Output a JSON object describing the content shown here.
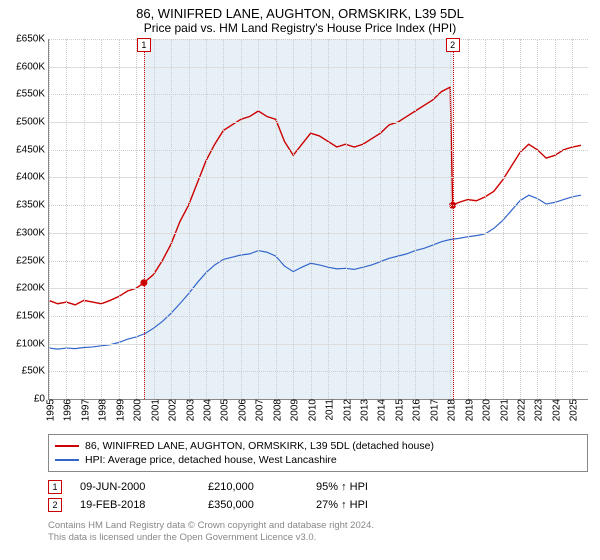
{
  "title": "86, WINIFRED LANE, AUGHTON, ORMSKIRK, L39 5DL",
  "subtitle": "Price paid vs. HM Land Registry's House Price Index (HPI)",
  "chart": {
    "type": "line",
    "background": "#ffffff",
    "grid_color": "#dddddd",
    "grid_dot_color": "#cccccc",
    "x_start_year": 1995,
    "x_end_year": 2025.9,
    "xtick_years": [
      1995,
      1996,
      1997,
      1998,
      1999,
      2000,
      2001,
      2002,
      2003,
      2004,
      2005,
      2006,
      2007,
      2008,
      2009,
      2010,
      2011,
      2012,
      2013,
      2014,
      2015,
      2016,
      2017,
      2018,
      2019,
      2020,
      2021,
      2022,
      2023,
      2024,
      2025
    ],
    "ylim": [
      0,
      650000
    ],
    "ytick_step": 50000,
    "ylabels": [
      "£0",
      "£50K",
      "£100K",
      "£150K",
      "£200K",
      "£250K",
      "£300K",
      "£350K",
      "£400K",
      "£450K",
      "£500K",
      "£550K",
      "£600K",
      "£650K"
    ],
    "shade": {
      "color": "#d6e4f0",
      "from_year": 2000.44,
      "to_year": 2018.14
    },
    "markers": [
      {
        "n": "1",
        "year": 2000.44,
        "price": 210000,
        "color": "#cc0000"
      },
      {
        "n": "2",
        "year": 2018.14,
        "price": 350000,
        "color": "#cc0000"
      }
    ],
    "series": [
      {
        "name": "86, WINIFRED LANE, AUGHTON, ORMSKIRK, L39 5DL (detached house)",
        "color": "#cc0000",
        "line_width": 1.4,
        "values": [
          [
            1995,
            178000
          ],
          [
            1995.5,
            172000
          ],
          [
            1996,
            175000
          ],
          [
            1996.5,
            170000
          ],
          [
            1997,
            178000
          ],
          [
            1997.5,
            175000
          ],
          [
            1998,
            172000
          ],
          [
            1998.5,
            178000
          ],
          [
            1999,
            185000
          ],
          [
            1999.5,
            195000
          ],
          [
            2000,
            200000
          ],
          [
            2000.44,
            210000
          ],
          [
            2001,
            225000
          ],
          [
            2001.5,
            250000
          ],
          [
            2002,
            280000
          ],
          [
            2002.5,
            320000
          ],
          [
            2003,
            350000
          ],
          [
            2003.5,
            390000
          ],
          [
            2004,
            430000
          ],
          [
            2004.5,
            460000
          ],
          [
            2005,
            485000
          ],
          [
            2005.5,
            495000
          ],
          [
            2006,
            505000
          ],
          [
            2006.5,
            510000
          ],
          [
            2007,
            520000
          ],
          [
            2007.5,
            510000
          ],
          [
            2008,
            505000
          ],
          [
            2008.5,
            465000
          ],
          [
            2009,
            440000
          ],
          [
            2009.5,
            460000
          ],
          [
            2010,
            480000
          ],
          [
            2010.5,
            475000
          ],
          [
            2011,
            465000
          ],
          [
            2011.5,
            455000
          ],
          [
            2012,
            460000
          ],
          [
            2012.5,
            455000
          ],
          [
            2013,
            460000
          ],
          [
            2013.5,
            470000
          ],
          [
            2014,
            480000
          ],
          [
            2014.5,
            495000
          ],
          [
            2015,
            500000
          ],
          [
            2015.5,
            510000
          ],
          [
            2016,
            520000
          ],
          [
            2016.5,
            530000
          ],
          [
            2017,
            540000
          ],
          [
            2017.5,
            555000
          ],
          [
            2018,
            563000
          ],
          [
            2018.14,
            350000
          ],
          [
            2018.5,
            355000
          ],
          [
            2019,
            360000
          ],
          [
            2019.5,
            358000
          ],
          [
            2020,
            365000
          ],
          [
            2020.5,
            375000
          ],
          [
            2021,
            395000
          ],
          [
            2021.5,
            420000
          ],
          [
            2022,
            445000
          ],
          [
            2022.5,
            460000
          ],
          [
            2023,
            450000
          ],
          [
            2023.5,
            435000
          ],
          [
            2024,
            440000
          ],
          [
            2024.5,
            450000
          ],
          [
            2025,
            455000
          ],
          [
            2025.5,
            458000
          ]
        ]
      },
      {
        "name": "HPI: Average price, detached house, West Lancashire",
        "color": "#3366cc",
        "line_width": 1.2,
        "values": [
          [
            1995,
            92000
          ],
          [
            1995.5,
            90000
          ],
          [
            1996,
            92000
          ],
          [
            1996.5,
            91000
          ],
          [
            1997,
            93000
          ],
          [
            1997.5,
            94000
          ],
          [
            1998,
            96000
          ],
          [
            1998.5,
            98000
          ],
          [
            1999,
            102000
          ],
          [
            1999.5,
            108000
          ],
          [
            2000,
            112000
          ],
          [
            2000.5,
            118000
          ],
          [
            2001,
            128000
          ],
          [
            2001.5,
            140000
          ],
          [
            2002,
            155000
          ],
          [
            2002.5,
            172000
          ],
          [
            2003,
            190000
          ],
          [
            2003.5,
            210000
          ],
          [
            2004,
            228000
          ],
          [
            2004.5,
            242000
          ],
          [
            2005,
            252000
          ],
          [
            2005.5,
            256000
          ],
          [
            2006,
            260000
          ],
          [
            2006.5,
            262000
          ],
          [
            2007,
            268000
          ],
          [
            2007.5,
            265000
          ],
          [
            2008,
            258000
          ],
          [
            2008.5,
            240000
          ],
          [
            2009,
            230000
          ],
          [
            2009.5,
            238000
          ],
          [
            2010,
            245000
          ],
          [
            2010.5,
            242000
          ],
          [
            2011,
            238000
          ],
          [
            2011.5,
            235000
          ],
          [
            2012,
            236000
          ],
          [
            2012.5,
            234000
          ],
          [
            2013,
            238000
          ],
          [
            2013.5,
            242000
          ],
          [
            2014,
            248000
          ],
          [
            2014.5,
            254000
          ],
          [
            2015,
            258000
          ],
          [
            2015.5,
            262000
          ],
          [
            2016,
            268000
          ],
          [
            2016.5,
            272000
          ],
          [
            2017,
            278000
          ],
          [
            2017.5,
            284000
          ],
          [
            2018,
            288000
          ],
          [
            2018.5,
            290000
          ],
          [
            2019,
            293000
          ],
          [
            2019.5,
            295000
          ],
          [
            2020,
            298000
          ],
          [
            2020.5,
            308000
          ],
          [
            2021,
            322000
          ],
          [
            2021.5,
            340000
          ],
          [
            2022,
            358000
          ],
          [
            2022.5,
            368000
          ],
          [
            2023,
            362000
          ],
          [
            2023.5,
            352000
          ],
          [
            2024,
            355000
          ],
          [
            2024.5,
            360000
          ],
          [
            2025,
            365000
          ],
          [
            2025.5,
            368000
          ]
        ]
      }
    ]
  },
  "legend": [
    "86, WINIFRED LANE, AUGHTON, ORMSKIRK, L39 5DL (detached house)",
    "HPI: Average price, detached house, West Lancashire"
  ],
  "sales": [
    {
      "n": "1",
      "date": "09-JUN-2000",
      "price": "£210,000",
      "hpi": "95% ↑ HPI",
      "color": "#cc0000"
    },
    {
      "n": "2",
      "date": "19-FEB-2018",
      "price": "£350,000",
      "hpi": "27% ↑ HPI",
      "color": "#cc0000"
    }
  ],
  "footer1": "Contains HM Land Registry data © Crown copyright and database right 2024.",
  "footer2": "This data is licensed under the Open Government Licence v3.0."
}
